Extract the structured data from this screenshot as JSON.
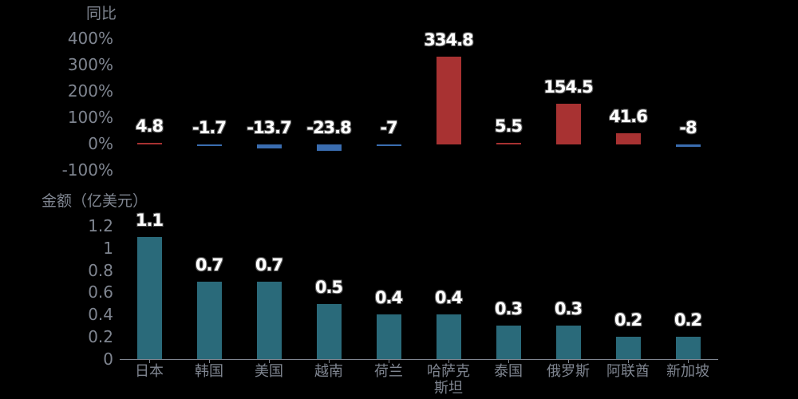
{
  "chart_data": [
    {
      "type": "bar",
      "title": "",
      "ylabel": "同比",
      "xlabel": "",
      "categories": [
        "日本",
        "韩国",
        "美国",
        "越南",
        "荷兰",
        "哈萨克斯坦",
        "泰国",
        "俄罗斯",
        "阿联酋",
        "新加坡"
      ],
      "values": [
        4.8,
        -1.7,
        -13.7,
        -23.8,
        -7,
        334.8,
        5.5,
        154.5,
        41.6,
        -8
      ],
      "ylim": [
        -100,
        400
      ],
      "yticks": [
        "400%",
        "300%",
        "200%",
        "100%",
        "0%",
        "-100%"
      ],
      "colors": {
        "positive": "#a83232",
        "negative": "#3a6db0"
      },
      "grid": false,
      "data_labels": true
    },
    {
      "type": "bar",
      "title": "",
      "ylabel": "金额（亿美元）",
      "xlabel": "",
      "categories": [
        "日本",
        "韩国",
        "美国",
        "越南",
        "荷兰",
        "哈萨克斯坦",
        "泰国",
        "俄罗斯",
        "阿联酋",
        "新加坡"
      ],
      "values": [
        1.1,
        0.7,
        0.7,
        0.5,
        0.4,
        0.4,
        0.3,
        0.3,
        0.2,
        0.2
      ],
      "ylim": [
        0,
        1.2
      ],
      "yticks": [
        "1.2",
        "1",
        "0.8",
        "0.6",
        "0.4",
        "0.2",
        "0"
      ],
      "colors": {
        "bar": "#2a6a7a"
      },
      "grid": false,
      "data_labels": true
    }
  ],
  "top": {
    "axis_title": "同比",
    "yticks": [
      "400%",
      "300%",
      "200%",
      "100%",
      "0%",
      "-100%"
    ],
    "labels": [
      "4.8",
      "-1.7",
      "-13.7",
      "-23.8",
      "-7",
      "334.8",
      "5.5",
      "154.5",
      "41.6",
      "-8"
    ]
  },
  "bottom": {
    "axis_title": "金额（亿美元）",
    "yticks": [
      "1.2",
      "1",
      "0.8",
      "0.6",
      "0.4",
      "0.2",
      "0"
    ],
    "labels": [
      "1.1",
      "0.7",
      "0.7",
      "0.5",
      "0.4",
      "0.4",
      "0.3",
      "0.3",
      "0.2",
      "0.2"
    ],
    "categories": [
      "日本",
      "韩国",
      "美国",
      "越南",
      "荷兰",
      "哈萨克\n斯坦",
      "泰国",
      "俄罗斯",
      "阿联酋",
      "新加坡"
    ]
  }
}
